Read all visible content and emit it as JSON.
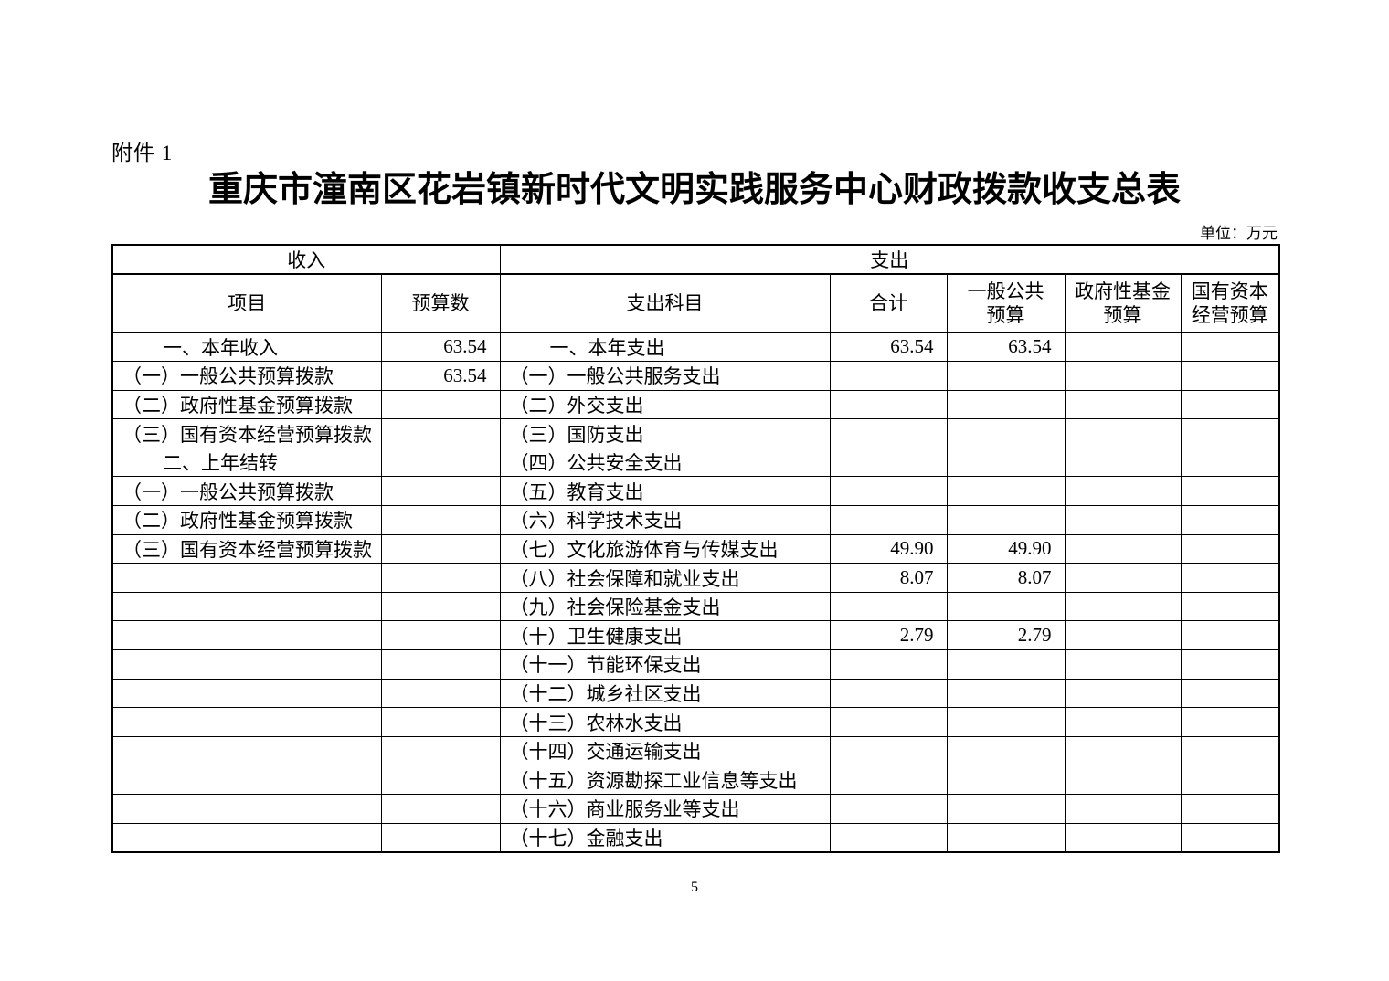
{
  "page": {
    "attachment_label": "附件 1",
    "title": "重庆市潼南区花岩镇新时代文明实践服务中心财政拨款收支总表",
    "unit_note": "单位：万元",
    "page_number": "5"
  },
  "table": {
    "section_headers": {
      "income": "收入",
      "expense": "支出"
    },
    "column_headers": [
      "项目",
      "预算数",
      "支出科目",
      "合计",
      "一般公共\n预算",
      "政府性基金\n预算",
      "国有资本\n经营预算"
    ],
    "rows": [
      {
        "income_item": "一、本年收入",
        "income_indent": true,
        "income_budget": "63.54",
        "expense_item": "一、本年支出",
        "expense_indent": true,
        "total": "63.54",
        "general_public": "63.54",
        "gov_fund": "",
        "state_capital": ""
      },
      {
        "income_item": "（一）一般公共预算拨款",
        "income_indent": false,
        "income_budget": "63.54",
        "expense_item": "（一）一般公共服务支出",
        "expense_indent": false,
        "total": "",
        "general_public": "",
        "gov_fund": "",
        "state_capital": ""
      },
      {
        "income_item": "（二）政府性基金预算拨款",
        "income_indent": false,
        "income_budget": "",
        "expense_item": "（二）外交支出",
        "expense_indent": false,
        "total": "",
        "general_public": "",
        "gov_fund": "",
        "state_capital": ""
      },
      {
        "income_item": "（三）国有资本经营预算拨款",
        "income_indent": false,
        "income_budget": "",
        "expense_item": "（三）国防支出",
        "expense_indent": false,
        "total": "",
        "general_public": "",
        "gov_fund": "",
        "state_capital": ""
      },
      {
        "income_item": "二、上年结转",
        "income_indent": true,
        "income_budget": "",
        "expense_item": "（四）公共安全支出",
        "expense_indent": false,
        "total": "",
        "general_public": "",
        "gov_fund": "",
        "state_capital": ""
      },
      {
        "income_item": "（一）一般公共预算拨款",
        "income_indent": false,
        "income_budget": "",
        "expense_item": "（五）教育支出",
        "expense_indent": false,
        "total": "",
        "general_public": "",
        "gov_fund": "",
        "state_capital": ""
      },
      {
        "income_item": "（二）政府性基金预算拨款",
        "income_indent": false,
        "income_budget": "",
        "expense_item": "（六）科学技术支出",
        "expense_indent": false,
        "total": "",
        "general_public": "",
        "gov_fund": "",
        "state_capital": ""
      },
      {
        "income_item": "（三）国有资本经营预算拨款",
        "income_indent": false,
        "income_budget": "",
        "expense_item": "（七）文化旅游体育与传媒支出",
        "expense_indent": false,
        "total": "49.90",
        "general_public": "49.90",
        "gov_fund": "",
        "state_capital": ""
      },
      {
        "income_item": "",
        "income_indent": false,
        "income_budget": "",
        "expense_item": "（八）社会保障和就业支出",
        "expense_indent": false,
        "total": "8.07",
        "general_public": "8.07",
        "gov_fund": "",
        "state_capital": ""
      },
      {
        "income_item": "",
        "income_indent": false,
        "income_budget": "",
        "expense_item": "（九）社会保险基金支出",
        "expense_indent": false,
        "total": "",
        "general_public": "",
        "gov_fund": "",
        "state_capital": ""
      },
      {
        "income_item": "",
        "income_indent": false,
        "income_budget": "",
        "expense_item": "（十）卫生健康支出",
        "expense_indent": false,
        "total": "2.79",
        "general_public": "2.79",
        "gov_fund": "",
        "state_capital": ""
      },
      {
        "income_item": "",
        "income_indent": false,
        "income_budget": "",
        "expense_item": "（十一）节能环保支出",
        "expense_indent": false,
        "total": "",
        "general_public": "",
        "gov_fund": "",
        "state_capital": ""
      },
      {
        "income_item": "",
        "income_indent": false,
        "income_budget": "",
        "expense_item": "（十二）城乡社区支出",
        "expense_indent": false,
        "total": "",
        "general_public": "",
        "gov_fund": "",
        "state_capital": ""
      },
      {
        "income_item": "",
        "income_indent": false,
        "income_budget": "",
        "expense_item": "（十三）农林水支出",
        "expense_indent": false,
        "total": "",
        "general_public": "",
        "gov_fund": "",
        "state_capital": ""
      },
      {
        "income_item": "",
        "income_indent": false,
        "income_budget": "",
        "expense_item": "（十四）交通运输支出",
        "expense_indent": false,
        "total": "",
        "general_public": "",
        "gov_fund": "",
        "state_capital": ""
      },
      {
        "income_item": "",
        "income_indent": false,
        "income_budget": "",
        "expense_item": "（十五）资源勘探工业信息等支出",
        "expense_indent": false,
        "total": "",
        "general_public": "",
        "gov_fund": "",
        "state_capital": ""
      },
      {
        "income_item": "",
        "income_indent": false,
        "income_budget": "",
        "expense_item": "（十六）商业服务业等支出",
        "expense_indent": false,
        "total": "",
        "general_public": "",
        "gov_fund": "",
        "state_capital": ""
      },
      {
        "income_item": "",
        "income_indent": false,
        "income_budget": "",
        "expense_item": "（十七）金融支出",
        "expense_indent": false,
        "total": "",
        "general_public": "",
        "gov_fund": "",
        "state_capital": ""
      }
    ]
  }
}
